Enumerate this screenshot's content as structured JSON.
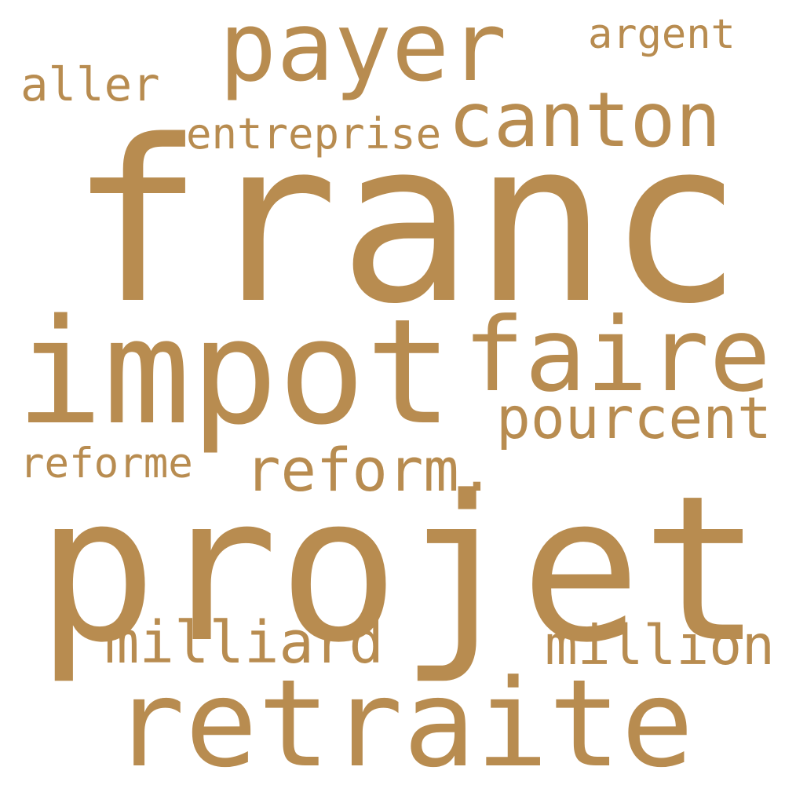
{
  "word_color": "#b88c50",
  "background_color": "#ffffff",
  "words": {
    "franc": "franc",
    "projet": "projet",
    "impot": "impot",
    "payer": "payer",
    "retraite": "retraite",
    "faire": "faire",
    "canton": "canton",
    "reform": "reform.",
    "pourcent": "pourcent",
    "milliard": "milliard",
    "million": "million",
    "aller": "aller",
    "entreprise": "entreprise",
    "argent": "argent",
    "reforme": "reforme"
  }
}
